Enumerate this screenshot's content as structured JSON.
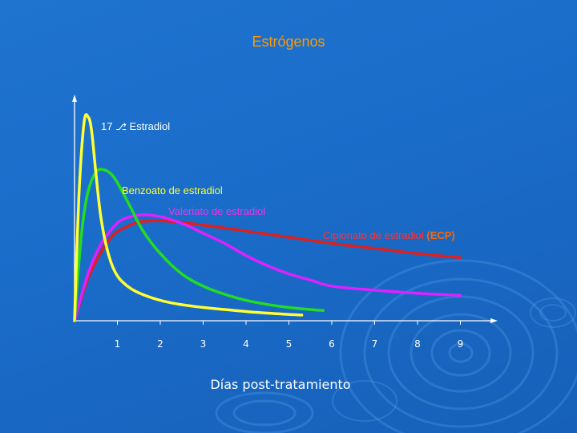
{
  "slide": {
    "title": "Estrógenos",
    "colors": {
      "background": "#1a6cc9",
      "title": "#ff9900",
      "axis": "#ffffff"
    }
  },
  "chart_data": {
    "type": "line",
    "title": "Estrógenos",
    "xlabel": "Días post-tratamiento",
    "ylabel": "",
    "xlim": [
      0,
      10
    ],
    "ylim": [
      0,
      1
    ],
    "xticks": [
      1,
      2,
      3,
      4,
      5,
      6,
      7,
      8,
      9
    ],
    "grid": false,
    "series": [
      {
        "name": "17 Estradiol",
        "label": "17",
        "label_rest": "Estradiol",
        "color": "#ffff33",
        "label_color": "#ffffff",
        "x": [
          0,
          0.1,
          0.22,
          0.32,
          0.4,
          0.5,
          0.62,
          0.8,
          1.0,
          1.3,
          1.7,
          2.2,
          2.8,
          3.5,
          4.3,
          5.1,
          5.3
        ],
        "y": [
          0,
          0.6,
          0.97,
          1.0,
          0.93,
          0.72,
          0.5,
          0.32,
          0.22,
          0.16,
          0.12,
          0.09,
          0.07,
          0.055,
          0.04,
          0.03,
          0.028
        ]
      },
      {
        "name": "Benzoato de estradiol",
        "label_color": "#ffff33",
        "color": "#22dd22",
        "x": [
          0,
          0.15,
          0.3,
          0.5,
          0.7,
          0.9,
          1.1,
          1.3,
          1.6,
          2.0,
          2.5,
          3.0,
          3.5,
          4.0,
          4.5,
          5.0,
          5.5,
          5.8
        ],
        "y": [
          0,
          0.4,
          0.62,
          0.73,
          0.74,
          0.71,
          0.64,
          0.56,
          0.44,
          0.33,
          0.23,
          0.17,
          0.13,
          0.1,
          0.08,
          0.065,
          0.055,
          0.05
        ]
      },
      {
        "name": "Valeriato de estradiol",
        "label_color": "#ee33ee",
        "color": "#dd22ff",
        "x": [
          0,
          0.3,
          0.6,
          1.0,
          1.3,
          1.6,
          1.9,
          2.2,
          2.6,
          3.0,
          3.5,
          4.0,
          4.5,
          5.0,
          5.5,
          6.0,
          7.0,
          8.0,
          9.0
        ],
        "y": [
          0,
          0.22,
          0.37,
          0.48,
          0.51,
          0.52,
          0.515,
          0.5,
          0.47,
          0.43,
          0.38,
          0.32,
          0.27,
          0.23,
          0.2,
          0.17,
          0.15,
          0.135,
          0.125
        ]
      },
      {
        "name": "Cipionato de estradiol",
        "label_suffix": "(ECP)",
        "label_color": "#ff3333",
        "label_suffix_color": "#ff6600",
        "color": "#dd2020",
        "x": [
          0,
          0.3,
          0.6,
          0.9,
          1.2,
          1.5,
          1.8,
          2.1,
          2.4,
          3.0,
          4.0,
          5.0,
          6.0,
          7.0,
          8.0,
          9.0
        ],
        "y": [
          0,
          0.2,
          0.33,
          0.42,
          0.46,
          0.485,
          0.49,
          0.49,
          0.485,
          0.47,
          0.44,
          0.41,
          0.38,
          0.355,
          0.33,
          0.31
        ]
      }
    ]
  }
}
